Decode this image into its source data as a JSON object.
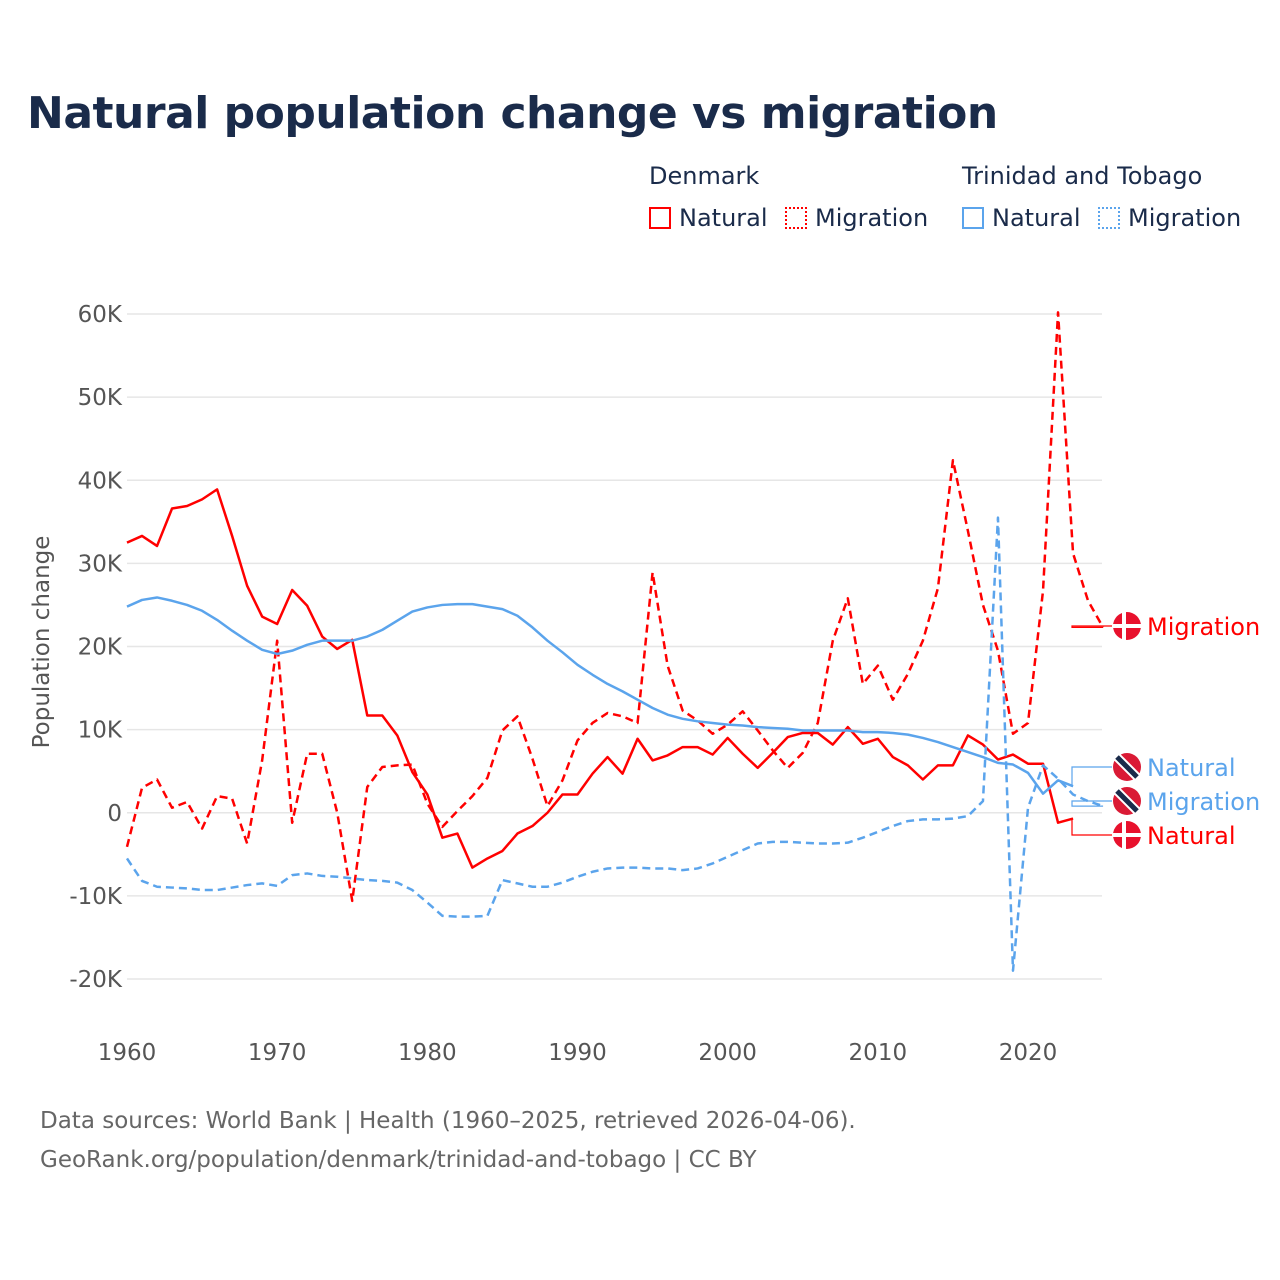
{
  "chart_data": {
    "type": "line",
    "title": "Natural population change vs migration",
    "ylabel": "Population change",
    "xlabel": "",
    "ylim": [
      -20000,
      60000
    ],
    "xlim": [
      1960,
      2025
    ],
    "yticks": [
      {
        "v": -20000,
        "label": "-20K"
      },
      {
        "v": -10000,
        "label": "-10K"
      },
      {
        "v": 0,
        "label": "0"
      },
      {
        "v": 10000,
        "label": "10K"
      },
      {
        "v": 20000,
        "label": "20K"
      },
      {
        "v": 30000,
        "label": "30K"
      },
      {
        "v": 40000,
        "label": "40K"
      },
      {
        "v": 50000,
        "label": "50K"
      },
      {
        "v": 60000,
        "label": "60K"
      }
    ],
    "xticks": [
      1960,
      1970,
      1980,
      1990,
      2000,
      2010,
      2020
    ],
    "grid": true,
    "legend": {
      "placement": "top-right",
      "groups": [
        {
          "name": "Denmark",
          "items": [
            "Natural",
            "Migration"
          ]
        },
        {
          "name": "Trinidad and Tobago",
          "items": [
            "Natural",
            "Migration"
          ]
        }
      ]
    },
    "series": [
      {
        "name": "Natural",
        "country": "Denmark",
        "color": "#ff0000",
        "dash": false,
        "start": 1960,
        "end_label": "Natural",
        "values": [
          32.5,
          33.3,
          32.1,
          36.6,
          36.9,
          37.7,
          38.9,
          33.3,
          27.3,
          23.6,
          22.7,
          26.8,
          24.9,
          21.2,
          19.7,
          20.8,
          11.7,
          11.7,
          9.3,
          4.9,
          2.2,
          -3.0,
          -2.5,
          -6.6,
          -5.5,
          -4.6,
          -2.5,
          -1.6,
          0,
          2.2,
          2.2,
          4.7,
          6.7,
          4.7,
          8.9,
          6.3,
          6.9,
          7.9,
          7.9,
          7.0,
          9.0,
          7.1,
          5.4,
          7.2,
          9.1,
          9.6,
          9.6,
          8.2,
          10.3,
          8.3,
          8.9,
          6.7,
          5.7,
          4.0,
          5.7,
          5.7,
          9.3,
          8.2,
          6.4,
          7.0,
          5.9,
          5.9,
          -1.2,
          -0.7
        ]
      },
      {
        "name": "Migration",
        "country": "Denmark",
        "color": "#ff0000",
        "dash": true,
        "start": 1960,
        "end_label": "Migration",
        "values": [
          -4.1,
          3.0,
          4.0,
          0.6,
          1.3,
          -1.9,
          2.0,
          1.7,
          -3.7,
          6.3,
          20.7,
          -1.2,
          7.1,
          7.1,
          0,
          -10.6,
          3.1,
          5.5,
          5.7,
          5.8,
          1.1,
          -1.7,
          0.2,
          2.0,
          4.2,
          9.9,
          11.6,
          6.5,
          0.8,
          3.9,
          8.7,
          10.8,
          12.0,
          11.6,
          10.8,
          28.9,
          17.7,
          12.3,
          11.1,
          9.5,
          10.6,
          12.2,
          9.9,
          7.5,
          5.4,
          7.2,
          10.8,
          20.7,
          25.8,
          15.5,
          17.7,
          13.6,
          16.7,
          20.7,
          27.0,
          42.4,
          33.9,
          25.0,
          19.5,
          9.5,
          10.8,
          26.7,
          60.2,
          31.2,
          25.5,
          22.3
        ]
      },
      {
        "name": "Natural",
        "country": "Trinidad and Tobago",
        "color": "#5ba4ec",
        "dash": false,
        "start": 1960,
        "end_label": "Natural",
        "values": [
          24.8,
          25.6,
          25.9,
          25.5,
          25.0,
          24.3,
          23.2,
          21.9,
          20.7,
          19.6,
          19.1,
          19.5,
          20.2,
          20.7,
          20.7,
          20.7,
          21.2,
          22.0,
          23.1,
          24.2,
          24.7,
          25.0,
          25.1,
          25.1,
          24.8,
          24.5,
          23.7,
          22.3,
          20.7,
          19.3,
          17.8,
          16.6,
          15.5,
          14.6,
          13.6,
          12.6,
          11.8,
          11.3,
          11.0,
          10.8,
          10.6,
          10.5,
          10.3,
          10.2,
          10.1,
          9.9,
          9.9,
          9.9,
          9.9,
          9.7,
          9.7,
          9.6,
          9.4,
          9.0,
          8.5,
          7.9,
          7.3,
          6.7,
          6.0,
          5.8,
          4.8,
          2.3,
          3.9,
          3.2
        ]
      },
      {
        "name": "Migration",
        "country": "Trinidad and Tobago",
        "color": "#5ba4ec",
        "dash": true,
        "start": 1960,
        "end_label": "Migration",
        "values": [
          -5.5,
          -8.2,
          -8.9,
          -9.0,
          -9.1,
          -9.3,
          -9.3,
          -9.0,
          -8.7,
          -8.5,
          -8.8,
          -7.5,
          -7.3,
          -7.6,
          -7.7,
          -7.9,
          -8.1,
          -8.2,
          -8.4,
          -9.3,
          -10.8,
          -12.4,
          -12.5,
          -12.5,
          -12.4,
          -8.1,
          -8.5,
          -8.9,
          -8.9,
          -8.4,
          -7.7,
          -7.1,
          -6.7,
          -6.6,
          -6.6,
          -6.7,
          -6.7,
          -6.9,
          -6.7,
          -6.1,
          -5.3,
          -4.5,
          -3.7,
          -3.5,
          -3.5,
          -3.6,
          -3.7,
          -3.7,
          -3.6,
          -3.0,
          -2.3,
          -1.6,
          -1.0,
          -0.8,
          -0.8,
          -0.7,
          -0.4,
          1.4,
          35.5,
          -19.0,
          0.6,
          5.7,
          4.1,
          2.2,
          1.4,
          0.8
        ]
      }
    ],
    "value_units": "thousands"
  },
  "footer": {
    "line1": "Data sources: World Bank | Health (1960–2025, retrieved 2026-04-06).",
    "line2": "GeoRank.org/population/denmark/trinidad-and-tobago | CC BY"
  },
  "colors": {
    "title": "#1a2b4a",
    "denmark": "#ff0000",
    "tt": "#5ba4ec",
    "axis_text": "#555555"
  }
}
